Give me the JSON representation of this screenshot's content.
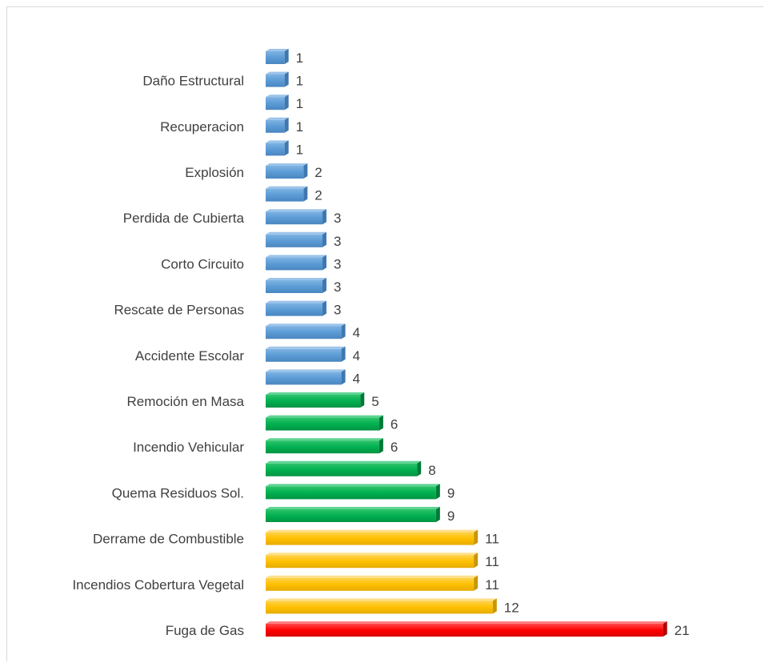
{
  "chart_data": {
    "type": "bar",
    "orientation": "horizontal",
    "title": "",
    "xlabel": "",
    "ylabel": "",
    "grid": false,
    "legend": "none",
    "xlim": [
      0,
      21
    ],
    "categories": [
      "",
      "Daño Estructural",
      "",
      "Recuperacion",
      "",
      "Explosión",
      "",
      "Perdida de Cubierta",
      "",
      "Corto Circuito",
      "",
      "Rescate de Personas",
      "",
      "Accidente Escolar",
      "",
      "Remoción en Masa",
      "",
      "Incendio Vehicular",
      "",
      "Quema Residuos Sol.",
      "",
      "Derrame de Combustible",
      "",
      "Incendios Cobertura Vegetal",
      "",
      "Fuga de Gas"
    ],
    "values": [
      1,
      1,
      1,
      1,
      1,
      2,
      2,
      3,
      3,
      3,
      3,
      3,
      4,
      4,
      4,
      5,
      6,
      6,
      8,
      9,
      9,
      11,
      11,
      11,
      12,
      21
    ],
    "colors": {
      "blue": "#5b9bd5",
      "green": "#00b050",
      "gold": "#ffc000",
      "red": "#ff0000"
    },
    "bar_colors": [
      "blue",
      "blue",
      "blue",
      "blue",
      "blue",
      "blue",
      "blue",
      "blue",
      "blue",
      "blue",
      "blue",
      "blue",
      "blue",
      "blue",
      "blue",
      "green",
      "green",
      "green",
      "green",
      "green",
      "green",
      "gold",
      "gold",
      "gold",
      "gold",
      "red"
    ]
  }
}
